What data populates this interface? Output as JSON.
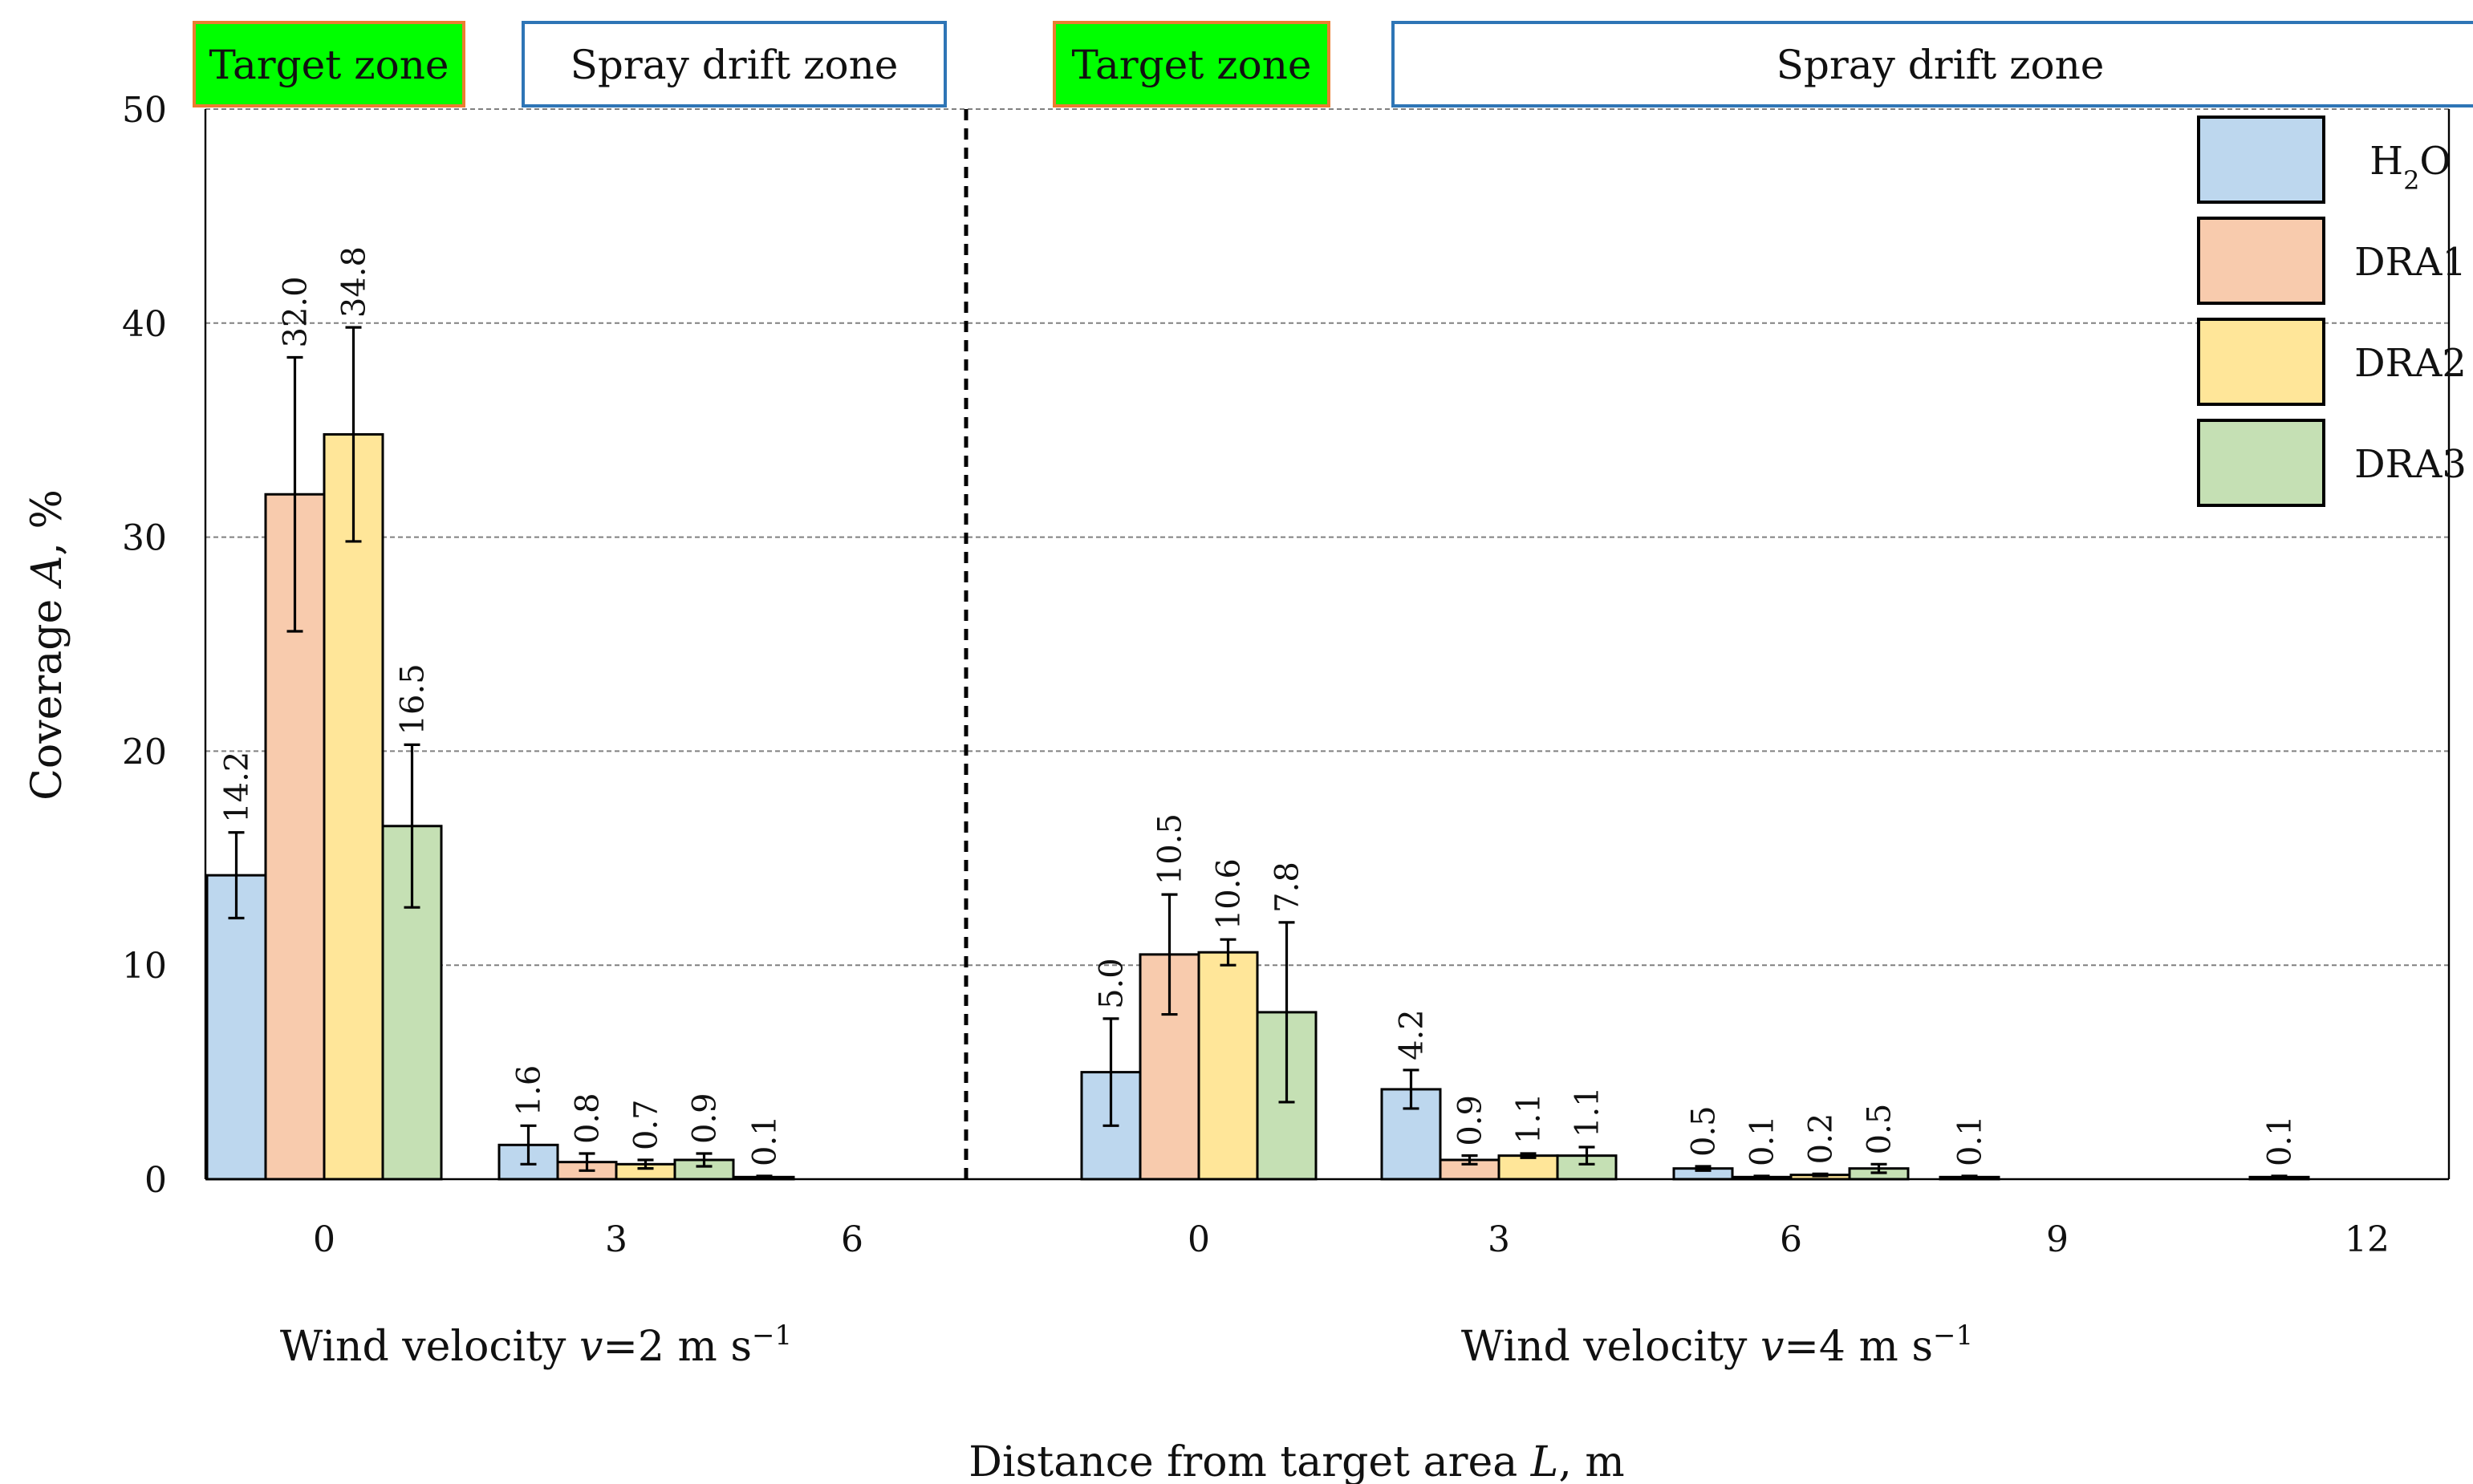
{
  "chart_data": {
    "type": "bar",
    "title": "",
    "ylabel": "Coverage A, %",
    "ylabel_parts": [
      "Coverage",
      "A",
      ", %"
    ],
    "xlabel": "Distance from target area L, m",
    "xlabel_parts": [
      "Distance from target area",
      "L",
      ", m"
    ],
    "ylim": [
      0,
      50
    ],
    "yticks": [
      0,
      10,
      20,
      30,
      40,
      50
    ],
    "grid": true,
    "legend_position": "top-right",
    "series": [
      {
        "name": "H2O",
        "name_parts": [
          "H",
          "2",
          "O"
        ],
        "color": "#bdd7ee"
      },
      {
        "name": "DRA1",
        "color": "#f8cbad"
      },
      {
        "name": "DRA2",
        "color": "#ffe699"
      },
      {
        "name": "DRA3",
        "color": "#c5e0b4"
      }
    ],
    "panels": [
      {
        "caption": "Wind velocity v=2 m s⁻¹",
        "caption_parts": [
          "Wind velocity ",
          "v",
          "=2 m s",
          "−1"
        ],
        "zones": [
          {
            "label": "Target zone",
            "type": "target"
          },
          {
            "label": "Spray drift zone",
            "type": "drift"
          }
        ],
        "groups": [
          {
            "category": "0",
            "values": [
              14.2,
              32.0,
              34.8,
              16.5
            ],
            "errors": [
              2.0,
              6.4,
              5.0,
              3.8
            ],
            "labels": [
              "14.2",
              "32.0",
              "34.8",
              "16.5"
            ]
          },
          {
            "category": "3",
            "values": [
              1.6,
              0.8,
              0.7,
              0.9
            ],
            "errors": [
              0.9,
              0.4,
              0.2,
              0.3
            ],
            "labels": [
              "1.6",
              "0.8",
              "0.7",
              "0.9"
            ]
          },
          {
            "category": "6",
            "values": [
              0.1,
              null,
              null,
              null
            ],
            "errors": [
              0.05,
              null,
              null,
              null
            ],
            "labels": [
              "0.1",
              null,
              null,
              null
            ]
          }
        ]
      },
      {
        "caption": "Wind velocity v=4 m s⁻¹",
        "caption_parts": [
          "Wind velocity ",
          "v",
          "=4 m s",
          "−1"
        ],
        "zones": [
          {
            "label": "Target zone",
            "type": "target"
          },
          {
            "label": "Spray drift zone",
            "type": "drift"
          }
        ],
        "groups": [
          {
            "category": "0",
            "values": [
              5.0,
              10.5,
              10.6,
              7.8
            ],
            "errors": [
              2.5,
              2.8,
              0.6,
              4.2
            ],
            "labels": [
              "5.0",
              "10.5",
              "10.6",
              "7.8"
            ]
          },
          {
            "category": "3",
            "values": [
              4.2,
              0.9,
              1.1,
              1.1
            ],
            "errors": [
              0.9,
              0.2,
              0.1,
              0.4
            ],
            "labels": [
              "4.2",
              "0.9",
              "1.1",
              "1.1"
            ]
          },
          {
            "category": "6",
            "values": [
              0.5,
              0.1,
              0.2,
              0.5
            ],
            "errors": [
              0.1,
              0.05,
              0.05,
              0.2
            ],
            "labels": [
              "0.5",
              "0.1",
              "0.2",
              "0.5"
            ]
          },
          {
            "category": "9",
            "values": [
              0.1,
              null,
              null,
              null
            ],
            "errors": [
              0.05,
              null,
              null,
              null
            ],
            "labels": [
              "0.1",
              null,
              null,
              null
            ]
          },
          {
            "category": "12",
            "values": [
              0.1,
              null,
              null,
              null
            ],
            "errors": [
              0.05,
              null,
              null,
              null
            ],
            "labels": [
              "0.1",
              null,
              null,
              null
            ]
          }
        ]
      }
    ]
  },
  "colors": {
    "target_zone_fill": "#00ff00",
    "target_zone_border": "#ed7d31",
    "drift_zone_border": "#2e75b6",
    "bar_edge": "#000000",
    "grid": "#808080"
  }
}
